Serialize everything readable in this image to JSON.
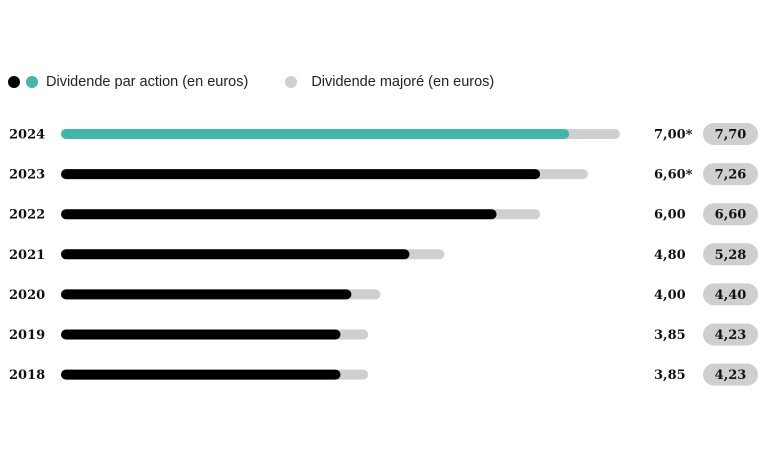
{
  "legend": {
    "series_a_label": "Dividende par action (en euros)",
    "series_b_label": "Dividende majoré (en euros)"
  },
  "colors": {
    "current_year": "#45b5ab",
    "past_years": "#000000",
    "enhanced": "#cfcfcf",
    "pill": "#cfcfcf"
  },
  "chart_data": {
    "type": "bar",
    "orientation": "horizontal",
    "categories": [
      "2024",
      "2023",
      "2022",
      "2021",
      "2020",
      "2019",
      "2018"
    ],
    "series": [
      {
        "name": "Dividende par action (en euros)",
        "values": [
          7.0,
          6.6,
          6.0,
          4.8,
          4.0,
          3.85,
          3.85
        ],
        "labels": [
          "7,00*",
          "6,60*",
          "6,00",
          "4,80",
          "4,00",
          "3,85",
          "3,85"
        ]
      },
      {
        "name": "Dividende majoré (en euros)",
        "values": [
          7.7,
          7.26,
          6.6,
          5.28,
          4.4,
          4.23,
          4.23
        ],
        "labels": [
          "7,70",
          "7,26",
          "6,60",
          "5,28",
          "4,40",
          "4,23",
          "4,23"
        ]
      }
    ],
    "highlight_category": "2024",
    "title": "",
    "xlabel": "",
    "ylabel": ""
  }
}
